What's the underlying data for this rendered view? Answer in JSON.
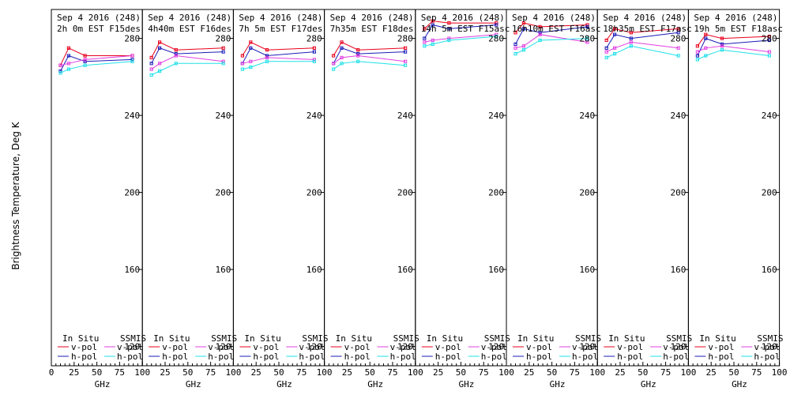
{
  "chart_data": {
    "type": "line",
    "ylabel": "Brightness Temperature, Deg K",
    "xlabel": "GHz",
    "xlim": [
      0,
      100
    ],
    "ylim": [
      110,
      295
    ],
    "yticks": [
      120,
      160,
      200,
      240,
      280
    ],
    "xticks": [
      0,
      25,
      50,
      75,
      100
    ],
    "xtick_labels": [
      "0",
      "25",
      "50",
      "75",
      "100"
    ],
    "legend": {
      "in_situ": "In Situ",
      "ssmis": "SSMIS",
      "v_pol": "v-pol",
      "h_pol": "h-pol"
    },
    "colors": {
      "in_situ_v": "#e8001c",
      "in_situ_h": "#1c1cb8",
      "ssmis_v": "#e040e0",
      "ssmis_h": "#20e0e8"
    },
    "freqs": [
      10,
      19,
      37,
      89
    ],
    "panels": [
      {
        "title1": "Sep 4 2016 (248)",
        "title2": "2h 0m EST F15des",
        "series": [
          {
            "name": "In Situ v-pol",
            "values": [
              266,
              275,
              271,
              271
            ]
          },
          {
            "name": "In Situ h-pol",
            "values": [
              263,
              271,
              268,
              269
            ]
          },
          {
            "name": "SSMIS v-pol",
            "values": [
              266,
              267,
              269,
              271
            ]
          },
          {
            "name": "SSMIS h-pol",
            "values": [
              262,
              264,
              266,
              268
            ]
          }
        ]
      },
      {
        "title1": "Sep 4 2016 (248)",
        "title2": "4h40m EST F16des",
        "series": [
          {
            "name": "In Situ v-pol",
            "values": [
              270,
              278,
              274,
              275
            ]
          },
          {
            "name": "In Situ h-pol",
            "values": [
              267,
              275,
              272,
              273
            ]
          },
          {
            "name": "SSMIS v-pol",
            "values": [
              264,
              267,
              271,
              268
            ]
          },
          {
            "name": "SSMIS h-pol",
            "values": [
              261,
              263,
              267,
              267
            ]
          }
        ]
      },
      {
        "title1": "Sep 4 2016 (248)",
        "title2": "7h 5m EST F17des",
        "series": [
          {
            "name": "In Situ v-pol",
            "values": [
              271,
              278,
              274,
              275
            ]
          },
          {
            "name": "In Situ h-pol",
            "values": [
              267,
              275,
              271,
              273
            ]
          },
          {
            "name": "SSMIS v-pol",
            "values": [
              267,
              268,
              270,
              269
            ]
          },
          {
            "name": "SSMIS h-pol",
            "values": [
              264,
              265,
              268,
              268
            ]
          }
        ]
      },
      {
        "title1": "Sep 4 2016 (248)",
        "title2": "7h35m EST F18des",
        "series": [
          {
            "name": "In Situ v-pol",
            "values": [
              271,
              278,
              274,
              275
            ]
          },
          {
            "name": "In Situ h-pol",
            "values": [
              267,
              275,
              272,
              273
            ]
          },
          {
            "name": "SSMIS v-pol",
            "values": [
              267,
              270,
              271,
              268
            ]
          },
          {
            "name": "SSMIS h-pol",
            "values": [
              264,
              267,
              268,
              266
            ]
          }
        ]
      },
      {
        "title1": "Sep 4 2016 (248)",
        "title2": "14h 5m EST F15asc",
        "series": [
          {
            "name": "In Situ v-pol",
            "values": [
              285,
              289,
              288,
              288
            ]
          },
          {
            "name": "In Situ h-pol",
            "values": [
              280,
              287,
              285,
              287
            ]
          },
          {
            "name": "SSMIS v-pol",
            "values": [
              278,
              279,
              280,
              282
            ]
          },
          {
            "name": "SSMIS h-pol",
            "values": [
              276,
              277,
              279,
              281
            ]
          }
        ]
      },
      {
        "title1": "Sep 4 2016 (248)",
        "title2": "16h10m EST F16asc",
        "series": [
          {
            "name": "In Situ v-pol",
            "values": [
              283,
              288,
              286,
              287
            ]
          },
          {
            "name": "In Situ h-pol",
            "values": [
              277,
              285,
              283,
              286
            ]
          },
          {
            "name": "SSMIS v-pol",
            "values": [
              275,
              276,
              282,
              278
            ]
          },
          {
            "name": "SSMIS h-pol",
            "values": [
              272,
              274,
              279,
              280
            ]
          }
        ]
      },
      {
        "title1": "Sep 4 2016 (248)",
        "title2": "18h35m EST F17asc",
        "series": [
          {
            "name": "In Situ v-pol",
            "values": [
              279,
              285,
              283,
              285
            ]
          },
          {
            "name": "In Situ h-pol",
            "values": [
              275,
              282,
              280,
              283
            ]
          },
          {
            "name": "SSMIS v-pol",
            "values": [
              273,
              275,
              278,
              275
            ]
          },
          {
            "name": "SSMIS h-pol",
            "values": [
              270,
              272,
              276,
              271
            ]
          }
        ]
      },
      {
        "title1": "Sep 4 2016 (248)",
        "title2": "19h 5m EST F18asc",
        "series": [
          {
            "name": "In Situ v-pol",
            "values": [
              276,
              282,
              280,
              281
            ]
          },
          {
            "name": "In Situ h-pol",
            "values": [
              271,
              280,
              277,
              279
            ]
          },
          {
            "name": "SSMIS v-pol",
            "values": [
              273,
              275,
              276,
              273
            ]
          },
          {
            "name": "SSMIS h-pol",
            "values": [
              269,
              271,
              274,
              271
            ]
          }
        ]
      }
    ]
  }
}
